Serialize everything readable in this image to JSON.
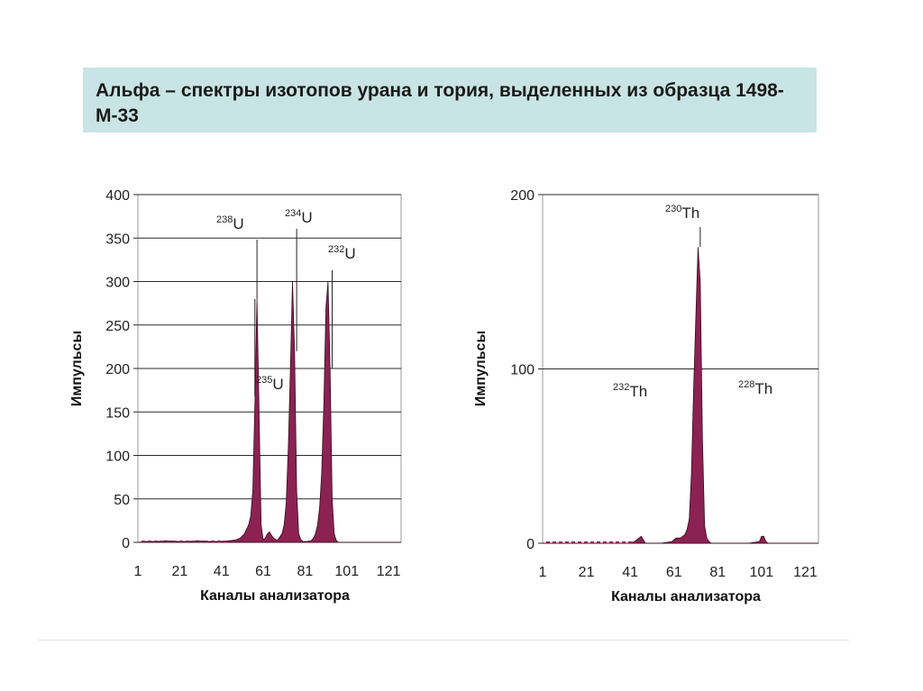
{
  "slide": {
    "title": "Альфа – спектры изотопов урана и тория, выделенных из образца 1498-М-33"
  },
  "chart_data": [
    {
      "type": "area",
      "xlabel": "Каналы анализатора",
      "ylabel": "Импульсы",
      "xlim": [
        1,
        127
      ],
      "ylim": [
        0,
        400
      ],
      "x_ticks": [
        1,
        21,
        41,
        61,
        81,
        101,
        121
      ],
      "y_ticks": [
        0,
        50,
        100,
        150,
        200,
        250,
        300,
        350,
        400
      ],
      "grid": "horizontal",
      "color": "#8b2252",
      "series": [
        {
          "x": [
            1,
            5,
            10,
            15,
            20,
            25,
            30,
            35,
            40,
            45,
            48,
            50,
            52,
            54,
            55,
            56,
            57,
            58,
            59,
            60,
            61,
            62,
            63,
            64,
            65,
            66,
            67,
            68,
            70,
            71,
            72,
            73,
            74,
            75,
            76,
            77,
            78,
            79,
            80,
            81,
            82,
            84,
            85,
            86,
            87,
            88,
            89,
            90,
            91,
            92,
            93,
            94,
            95,
            96,
            97,
            98,
            100,
            105,
            110,
            120,
            127
          ],
          "y": [
            0,
            1,
            1,
            2,
            1,
            1,
            2,
            1,
            1,
            2,
            3,
            5,
            10,
            20,
            30,
            60,
            160,
            280,
            150,
            20,
            3,
            5,
            10,
            12,
            8,
            5,
            3,
            3,
            10,
            20,
            45,
            110,
            200,
            300,
            220,
            60,
            10,
            3,
            1,
            1,
            1,
            2,
            5,
            10,
            20,
            40,
            80,
            160,
            270,
            300,
            200,
            50,
            10,
            2,
            0,
            0,
            0,
            0,
            0,
            0,
            0
          ]
        }
      ],
      "annotations": [
        {
          "mass": "238",
          "element": "U",
          "x": 58
        },
        {
          "mass": "234",
          "element": "U",
          "x": 77
        },
        {
          "mass": "232",
          "element": "U",
          "x": 94
        },
        {
          "mass": "235",
          "element": "U",
          "x": 57
        }
      ]
    },
    {
      "type": "area",
      "xlabel": "Каналы анализатора",
      "ylabel": "Импульсы",
      "xlim": [
        1,
        127
      ],
      "ylim": [
        0,
        200
      ],
      "x_ticks": [
        1,
        21,
        41,
        61,
        81,
        101,
        121
      ],
      "y_ticks": [
        0,
        100,
        200
      ],
      "grid": "horizontal",
      "color": "#8b2252",
      "series": [
        {
          "x": [
            1,
            10,
            20,
            30,
            40,
            43,
            46,
            47,
            48,
            51,
            55,
            60,
            62,
            63,
            64,
            65,
            66,
            67,
            68,
            69,
            70,
            71,
            72,
            73,
            74,
            75,
            76,
            77,
            78,
            80,
            85,
            95,
            100,
            101,
            102,
            103,
            104,
            110,
            120,
            127
          ],
          "y": [
            0,
            0,
            0,
            0,
            0,
            1,
            4,
            2,
            0,
            0,
            0,
            1,
            3,
            3,
            3,
            4,
            5,
            8,
            14,
            40,
            90,
            130,
            170,
            150,
            60,
            10,
            3,
            1,
            0,
            0,
            0,
            0,
            1,
            4,
            4,
            1,
            0,
            0,
            0,
            0
          ]
        }
      ],
      "annotations": [
        {
          "mass": "232",
          "element": "Th",
          "x": 46
        },
        {
          "mass": "230",
          "element": "Th",
          "x": 73
        },
        {
          "mass": "228",
          "element": "Th",
          "x": 102
        }
      ]
    }
  ]
}
